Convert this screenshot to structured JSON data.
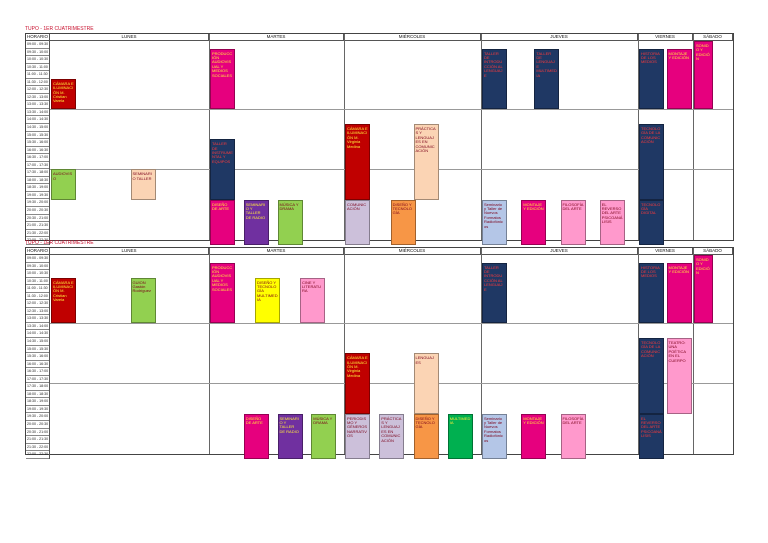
{
  "title": "TUPO - 1ER CUATRIMESTRE",
  "title_2": "TUPO - 1ER CUATRIMESTRE",
  "header": {
    "time_col": "HORARIO",
    "days": [
      "LUNES",
      "MARTES",
      "MIÉRCOLES",
      "JUEVES",
      "VIERNES",
      "SÁBADO"
    ]
  },
  "times": [
    "09:00 - 09:30",
    "09:30 - 10:00",
    "10:00 - 10:30",
    "10:30 - 11:00",
    "11:00 - 11:30",
    "11:30 - 12:00",
    "12:00 - 12:30",
    "12:30 - 13:00",
    "13:00 - 13:30",
    "13:30 - 14:00",
    "14:00 - 14:30",
    "14:30 - 15:00",
    "15:00 - 15:30",
    "15:30 - 16:00",
    "16:00 - 16:30",
    "16:30 - 17:00",
    "17:00 - 17:30",
    "17:30 - 18:00",
    "18:00 - 18:30",
    "18:30 - 19:00",
    "19:00 - 19:30",
    "19:30 - 20:00",
    "20:00 - 20:30",
    "20:30 - 21:00",
    "21:00 - 21:30",
    "21:30 - 22:00",
    "22:00 - 22:30"
  ],
  "colors": {
    "navy": "#1f3864",
    "green": "#92d050",
    "red": "#e00000",
    "magenta": "#e6007e",
    "pink": "#ff99cc",
    "orange": "#f79646",
    "purple": "#7030a0",
    "lightblue": "#b4c6e7",
    "yellow": "#ffff00",
    "darkred": "#c00000",
    "lime": "#00b050",
    "peach": "#fbd4b4",
    "teal": "#4bacc6",
    "lavender": "#ccc0da",
    "grey": "#bfbfbf",
    "salmon": "#f4b084"
  },
  "blocks": [
    {
      "t": 1,
      "d": 0,
      "s": 5,
      "e": 9,
      "sub": 0,
      "n": 1,
      "c": "darkred",
      "label": "CÁMARA E ILUMINACIÓN M. Cristian Varela"
    },
    {
      "t": 1,
      "d": 0,
      "s": 17,
      "e": 21,
      "sub": 0,
      "n": 2,
      "c": "green",
      "label": "AUDIOVISO"
    },
    {
      "t": 1,
      "d": 0,
      "s": 17,
      "e": 21,
      "sub": 1,
      "n": 2,
      "c": "peach",
      "label": "SEMINARIO TALLER"
    },
    {
      "t": 1,
      "d": 1,
      "s": 1,
      "e": 9,
      "sub": 0,
      "n": 3,
      "c": "magenta",
      "label": "PRODUCCIÓN AUDIOVISUAL Y MEDIOS SOCIALES"
    },
    {
      "t": 1,
      "d": 1,
      "s": 13,
      "e": 21,
      "sub": 0,
      "n": 3,
      "c": "navy",
      "label": "TALLER DE INSTRUMENTAL Y EQUIPOS"
    },
    {
      "t": 1,
      "d": 1,
      "s": 21,
      "e": 27,
      "sub": 0,
      "n": 4,
      "c": "magenta",
      "label": "DISEÑO DE ARTE"
    },
    {
      "t": 1,
      "d": 1,
      "s": 21,
      "e": 27,
      "sub": 1,
      "n": 4,
      "c": "purple",
      "label": "SEMINARIO Y TALLER DE RADIO"
    },
    {
      "t": 1,
      "d": 1,
      "s": 21,
      "e": 27,
      "sub": 2,
      "n": 4,
      "c": "green",
      "label": "MÚSICA Y DRAMA"
    },
    {
      "t": 1,
      "d": 2,
      "s": 11,
      "e": 21,
      "sub": 0,
      "n": 2,
      "c": "darkred",
      "label": "CÁMARA E ILUMINACIÓN M. Virginia Medina"
    },
    {
      "t": 1,
      "d": 2,
      "s": 11,
      "e": 21,
      "sub": 1,
      "n": 2,
      "c": "peach",
      "label": "PRÁCTICAS Y LENGUAJES EN COMUNICACIÓN"
    },
    {
      "t": 1,
      "d": 2,
      "s": 21,
      "e": 27,
      "sub": 0,
      "n": 3,
      "c": "lavender",
      "label": "COMUNICACIÓN"
    },
    {
      "t": 1,
      "d": 2,
      "s": 21,
      "e": 27,
      "sub": 1,
      "n": 3,
      "c": "orange",
      "label": "DISEÑO Y TECNOLOGÍA"
    },
    {
      "t": 1,
      "d": 3,
      "s": 1,
      "e": 9,
      "sub": 0,
      "n": 3,
      "c": "navy",
      "label": "TALLER DE INTRODUCCIÓN AL LENGUAJE"
    },
    {
      "t": 1,
      "d": 3,
      "s": 1,
      "e": 9,
      "sub": 1,
      "n": 3,
      "c": "navy",
      "label": "TALLER DE LENGUAJE MULTIMEDIA"
    },
    {
      "t": 1,
      "d": 3,
      "s": 21,
      "e": 27,
      "sub": 0,
      "n": 4,
      "c": "lightblue",
      "label": "Seminario y Taller de Nuevos Formatos Radiofónicos"
    },
    {
      "t": 1,
      "d": 3,
      "s": 21,
      "e": 27,
      "sub": 1,
      "n": 4,
      "c": "magenta",
      "label": "MONTAJE Y EDICIÓN"
    },
    {
      "t": 1,
      "d": 3,
      "s": 21,
      "e": 27,
      "sub": 2,
      "n": 4,
      "c": "pink",
      "label": "FILOSOFÍA DEL ARTE"
    },
    {
      "t": 1,
      "d": 3,
      "s": 21,
      "e": 27,
      "sub": 3,
      "n": 4,
      "c": "pink",
      "label": "EL REVERSO DEL ARTE PSICOANÁLISIS"
    },
    {
      "t": 1,
      "d": 4,
      "s": 1,
      "e": 9,
      "sub": 0,
      "n": 2,
      "c": "navy",
      "label": "HISTORIA DE LOS MEDIOS"
    },
    {
      "t": 1,
      "d": 4,
      "s": 1,
      "e": 9,
      "sub": 1,
      "n": 2,
      "c": "magenta",
      "label": "MONTAJE Y EDICIÓN"
    },
    {
      "t": 1,
      "d": 4,
      "s": 11,
      "e": 21,
      "sub": 0,
      "n": 2,
      "c": "navy",
      "label": "TECNOLOGÍA DE LA COMUNICACIÓN"
    },
    {
      "t": 1,
      "d": 4,
      "s": 21,
      "e": 27,
      "sub": 0,
      "n": 1,
      "c": "navy",
      "label": "TECNOLOGÍA DIGITAL"
    },
    {
      "t": 1,
      "d": 5,
      "s": 0,
      "e": 9,
      "sub": 0,
      "n": 2,
      "c": "magenta",
      "label": "SONIDO Y EDICIÓN"
    },
    {
      "t": 2,
      "d": 0,
      "s": 3,
      "e": 9,
      "sub": 0,
      "n": 2,
      "c": "darkred",
      "label": "CÁMARA E ILUMINACIÓN M. Cristian Varela"
    },
    {
      "t": 2,
      "d": 0,
      "s": 3,
      "e": 9,
      "sub": 1,
      "n": 2,
      "c": "green",
      "label": "GUION Gastón Rodríguez"
    },
    {
      "t": 2,
      "d": 1,
      "s": 1,
      "e": 9,
      "sub": 0,
      "n": 3,
      "c": "magenta",
      "label": "PRODUCCIÓN AUDIOVISUAL Y MEDIOS SOCIALES"
    },
    {
      "t": 2,
      "d": 1,
      "s": 3,
      "e": 9,
      "sub": 1,
      "n": 3,
      "c": "yellow",
      "label": "DISEÑO Y TECNOLOGÍA MULTIMEDIA"
    },
    {
      "t": 2,
      "d": 1,
      "s": 3,
      "e": 9,
      "sub": 2,
      "n": 3,
      "c": "pink",
      "label": "CINE Y LITERATURA"
    },
    {
      "t": 2,
      "d": 1,
      "s": 21,
      "e": 27,
      "sub": 1,
      "n": 4,
      "c": "magenta",
      "label": "DISEÑO DE ARTE"
    },
    {
      "t": 2,
      "d": 1,
      "s": 21,
      "e": 27,
      "sub": 2,
      "n": 4,
      "c": "purple",
      "label": "SEMINARIO Y TALLER DE RADIO"
    },
    {
      "t": 2,
      "d": 1,
      "s": 21,
      "e": 27,
      "sub": 3,
      "n": 4,
      "c": "green",
      "label": "MÚSICA Y DRAMA"
    },
    {
      "t": 2,
      "d": 2,
      "s": 13,
      "e": 21,
      "sub": 0,
      "n": 2,
      "c": "darkred",
      "label": "CÁMARA E ILUMINACIÓN M. Virginia Medina"
    },
    {
      "t": 2,
      "d": 2,
      "s": 13,
      "e": 21,
      "sub": 1,
      "n": 2,
      "c": "peach",
      "label": "LENGUAJES"
    },
    {
      "t": 2,
      "d": 2,
      "s": 21,
      "e": 27,
      "sub": 0,
      "n": 4,
      "c": "lavender",
      "label": "PERIODISMO Y GÉNEROS NARRATIVOS"
    },
    {
      "t": 2,
      "d": 2,
      "s": 21,
      "e": 27,
      "sub": 1,
      "n": 4,
      "c": "lavender",
      "label": "PRÁCTICAS Y LENGUAJES EN COMUNICACIÓN"
    },
    {
      "t": 2,
      "d": 2,
      "s": 21,
      "e": 27,
      "sub": 2,
      "n": 4,
      "c": "orange",
      "label": "DISEÑO Y TECNOLOGÍA"
    },
    {
      "t": 2,
      "d": 2,
      "s": 21,
      "e": 27,
      "sub": 3,
      "n": 4,
      "c": "lime",
      "label": "MULTIMEDIA"
    },
    {
      "t": 2,
      "d": 3,
      "s": 1,
      "e": 9,
      "sub": 0,
      "n": 2,
      "c": "navy",
      "label": "TALLER DE INTRODUCCIÓN AL LENGUAJE"
    },
    {
      "t": 2,
      "d": 3,
      "s": 21,
      "e": 27,
      "sub": 0,
      "n": 4,
      "c": "lightblue",
      "label": "Seminario y Taller de Nuevos Formatos Radiofónicos"
    },
    {
      "t": 2,
      "d": 3,
      "s": 21,
      "e": 27,
      "sub": 1,
      "n": 4,
      "c": "magenta",
      "label": "MONTAJE Y EDICIÓN"
    },
    {
      "t": 2,
      "d": 3,
      "s": 21,
      "e": 27,
      "sub": 2,
      "n": 4,
      "c": "pink",
      "label": "FILOSOFÍA DEL ARTE"
    },
    {
      "t": 2,
      "d": 4,
      "s": 1,
      "e": 9,
      "sub": 0,
      "n": 2,
      "c": "navy",
      "label": "HISTORIA DE LOS MEDIOS"
    },
    {
      "t": 2,
      "d": 4,
      "s": 1,
      "e": 9,
      "sub": 1,
      "n": 2,
      "c": "magenta",
      "label": "MONTAJE Y EDICIÓN"
    },
    {
      "t": 2,
      "d": 4,
      "s": 11,
      "e": 21,
      "sub": 0,
      "n": 2,
      "c": "navy",
      "label": "TECNOLOGÍA DE LA COMUNICACIÓN"
    },
    {
      "t": 2,
      "d": 4,
      "s": 11,
      "e": 21,
      "sub": 1,
      "n": 2,
      "c": "pink",
      "label": "TEATRO: UNA POÉTICA EN EL CUERPO"
    },
    {
      "t": 2,
      "d": 4,
      "s": 21,
      "e": 27,
      "sub": 0,
      "n": 1,
      "c": "navy",
      "label": "EL REVERSO DEL ARTE PSICOANÁLISIS"
    },
    {
      "t": 2,
      "d": 5,
      "s": 0,
      "e": 9,
      "sub": 0,
      "n": 2,
      "c": "magenta",
      "label": "SONIDO Y EDICIÓN"
    }
  ]
}
